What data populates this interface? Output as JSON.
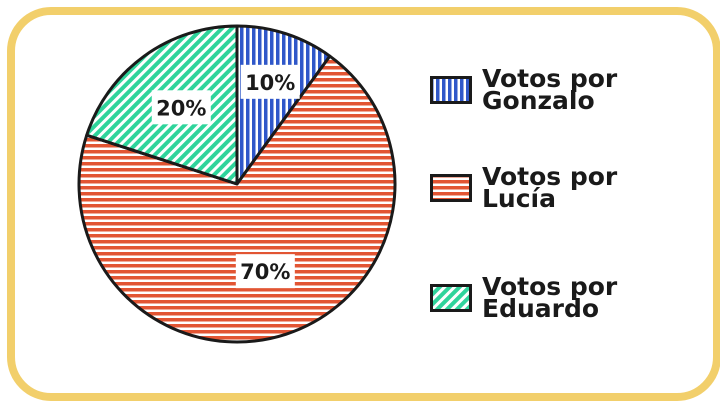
{
  "chart_data": {
    "type": "pie",
    "categories": [
      "Votos por Gonzalo",
      "Votos por Lucía",
      "Votos por Eduardo"
    ],
    "values": [
      10,
      70,
      20
    ],
    "data_labels": [
      "10%",
      "70%",
      "20%"
    ],
    "colors": [
      "#2f57c9",
      "#e25533",
      "#2fd49b"
    ],
    "patterns": [
      "vertical-stripes",
      "horizontal-stripes",
      "diagonal-stripes"
    ],
    "legend": {
      "placement": "right",
      "entries": [
        "Votos por Gonzalo",
        "Votos por Lucía",
        "Votos por Eduardo"
      ]
    },
    "start_angle_deg": 0,
    "direction": "clockwise"
  },
  "colors": {
    "frame": "#f2cf6b",
    "outline": "#1a1a1a",
    "background": "#ffffff"
  }
}
